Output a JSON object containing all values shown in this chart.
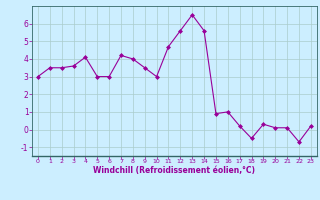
{
  "x": [
    0,
    1,
    2,
    3,
    4,
    5,
    6,
    7,
    8,
    9,
    10,
    11,
    12,
    13,
    14,
    15,
    16,
    17,
    18,
    19,
    20,
    21,
    22,
    23
  ],
  "y": [
    3.0,
    3.5,
    3.5,
    3.6,
    4.1,
    3.0,
    3.0,
    4.2,
    4.0,
    3.5,
    3.0,
    4.7,
    5.6,
    6.5,
    5.6,
    0.9,
    1.0,
    0.2,
    -0.5,
    0.3,
    0.1,
    0.1,
    -0.7,
    0.2
  ],
  "line_color": "#990099",
  "marker": "D",
  "marker_size": 2,
  "bg_color": "#cceeff",
  "grid_color": "#aacccc",
  "xlabel": "Windchill (Refroidissement éolien,°C)",
  "ylim": [
    -1.5,
    7.0
  ],
  "xlim": [
    -0.5,
    23.5
  ],
  "yticks": [
    -1,
    0,
    1,
    2,
    3,
    4,
    5,
    6
  ],
  "xticks": [
    0,
    1,
    2,
    3,
    4,
    5,
    6,
    7,
    8,
    9,
    10,
    11,
    12,
    13,
    14,
    15,
    16,
    17,
    18,
    19,
    20,
    21,
    22,
    23
  ],
  "tick_color": "#990099",
  "label_color": "#990099",
  "spine_color": "#336666",
  "xlabel_fontsize": 5.5,
  "ytick_fontsize": 5.5,
  "xtick_fontsize": 4.5,
  "linewidth": 0.8
}
